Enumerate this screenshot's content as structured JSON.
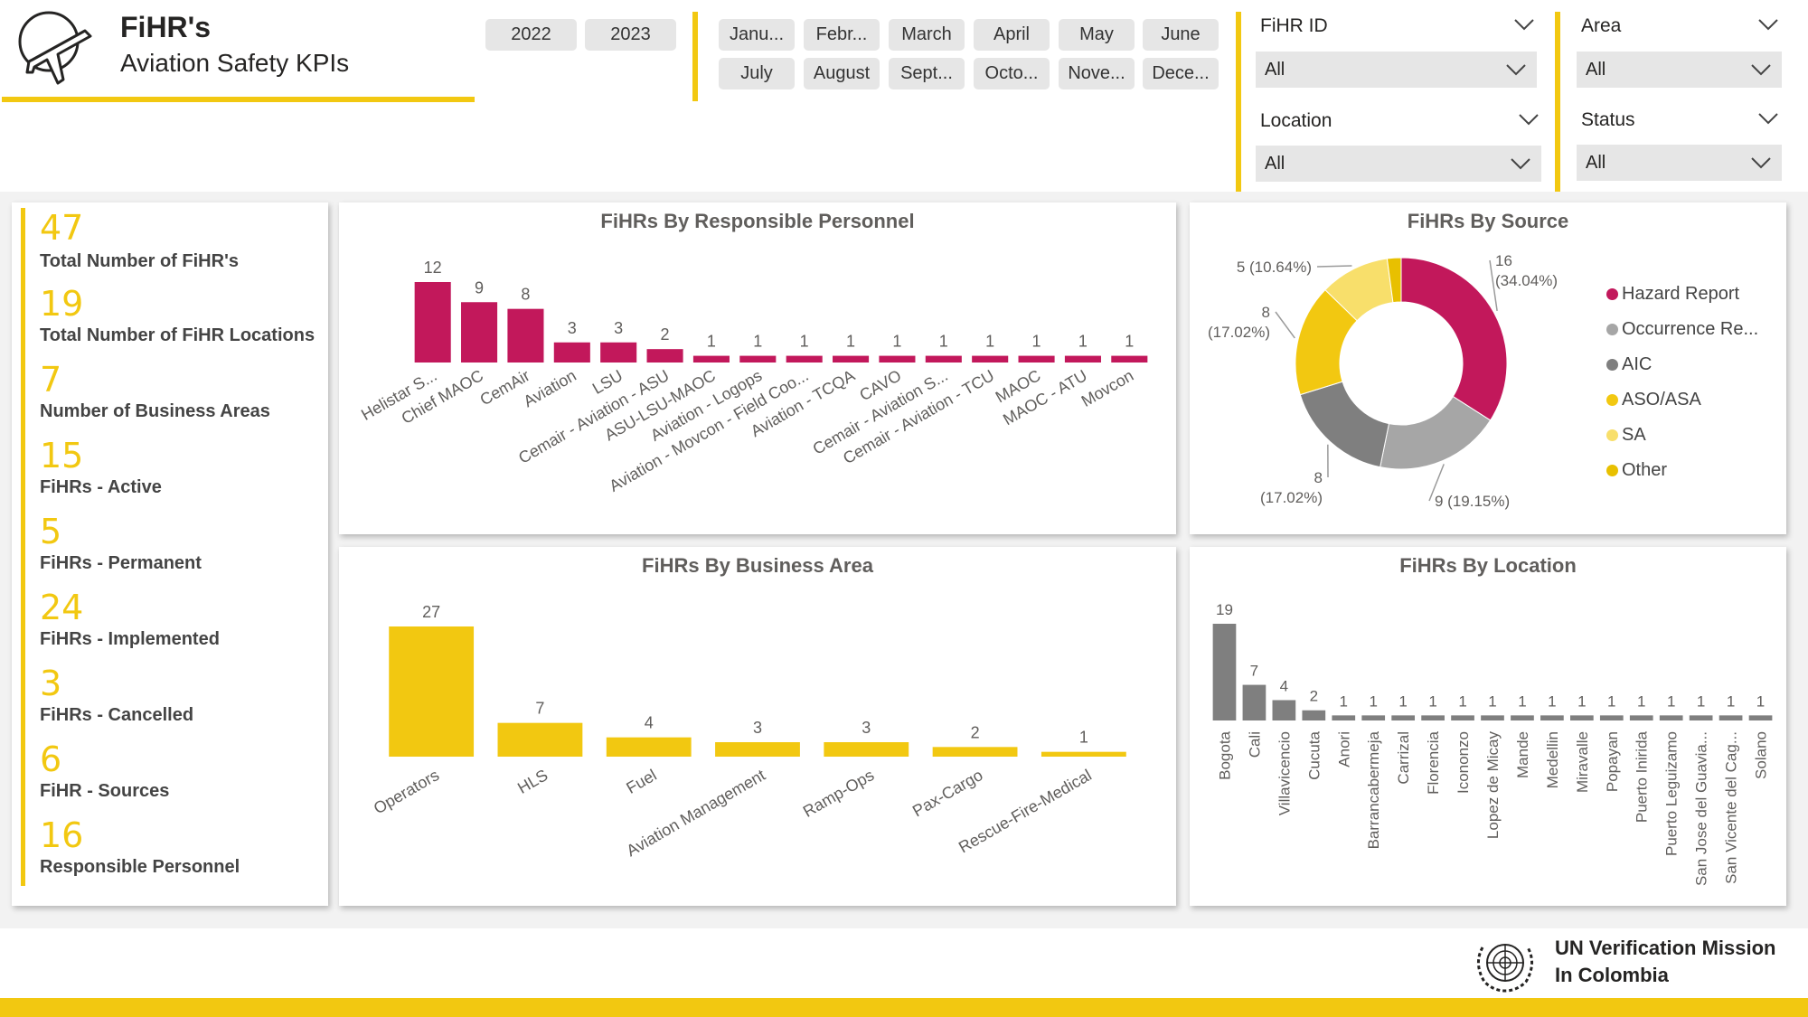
{
  "header": {
    "title": "FiHR's",
    "subtitle": "Aviation Safety KPIs",
    "years": [
      "2022",
      "2023"
    ],
    "months": [
      "Janu...",
      "Febr...",
      "March",
      "April",
      "May",
      "June",
      "July",
      "August",
      "Sept...",
      "Octo...",
      "Nove...",
      "Dece..."
    ]
  },
  "slicers": {
    "fihr_id": {
      "title": "FiHR ID",
      "value": "All"
    },
    "location": {
      "title": "Location",
      "value": "All"
    },
    "area": {
      "title": "Area",
      "value": "All"
    },
    "status": {
      "title": "Status",
      "value": "All"
    }
  },
  "kpis": [
    {
      "value": "47",
      "label": "Total Number of FiHR's"
    },
    {
      "value": "19",
      "label": "Total Number of FiHR Locations"
    },
    {
      "value": "7",
      "label": "Number of Business Areas"
    },
    {
      "value": "15",
      "label": "FiHRs - Active"
    },
    {
      "value": "5",
      "label": "FiHRs - Permanent"
    },
    {
      "value": "24",
      "label": "FiHRs - Implemented"
    },
    {
      "value": "3",
      "label": "FiHRs - Cancelled"
    },
    {
      "value": "6",
      "label": "FiHR - Sources"
    },
    {
      "value": "16",
      "label": "Responsible Personnel"
    }
  ],
  "footer": {
    "org_line1": "UN Verification Mission",
    "org_line2": "In Colombia"
  },
  "colors": {
    "accent_yellow": "#F2C811",
    "magenta": "#C2185B",
    "gray": "#7F7F7F",
    "slicer_bg": "#e6e6e6"
  },
  "icons": {
    "logo": "airplane-globe-icon",
    "dropdown": "chevron-down-icon",
    "emblem": "un-emblem-icon"
  },
  "chart_data": [
    {
      "type": "bar",
      "title": "FiHRs By Responsible Personnel",
      "color": "#C2185B",
      "categories": [
        "Helistar S...",
        "Chief MAOC",
        "CemAir",
        "Aviation",
        "LSU",
        "Cemair - Aviation - ASU",
        "ASU-LSU-MAOC",
        "Aviation - Logops",
        "Aviation - Movcon - Field Coo...",
        "Aviation - TCQA",
        "CAVO",
        "Cemair - Aviation S...",
        "Cemair - Aviation - TCU",
        "MAOC",
        "MAOC - ATU",
        "Movcon"
      ],
      "values": [
        12,
        9,
        8,
        3,
        3,
        2,
        1,
        1,
        1,
        1,
        1,
        1,
        1,
        1,
        1,
        1
      ]
    },
    {
      "type": "pie",
      "title": "FiHRs By Source",
      "categories": [
        "Hazard Report",
        "Occurrence Re...",
        "AIC",
        "ASO/ASA",
        "SA",
        "Other"
      ],
      "values": [
        16,
        9,
        8,
        8,
        5,
        1
      ],
      "colors": [
        "#C2185B",
        "#A6A6A6",
        "#7F7F7F",
        "#F2C811",
        "#F8DF6B",
        "#E8C000"
      ],
      "data_labels": [
        "16\n(34.04%)",
        "9 (19.15%)",
        "8\n(17.02%)",
        "8\n(17.02%)",
        "5 (10.64%)",
        ""
      ]
    },
    {
      "type": "bar",
      "title": "FiHRs By Business Area",
      "color": "#F2C811",
      "categories": [
        "Operators",
        "HLS",
        "Fuel",
        "Aviation Management",
        "Ramp-Ops",
        "Pax-Cargo",
        "Rescue-Fire-Medical"
      ],
      "values": [
        27,
        7,
        4,
        3,
        3,
        2,
        1
      ]
    },
    {
      "type": "bar",
      "title": "FiHRs By Location",
      "color": "#7F7F7F",
      "categories": [
        "Bogota",
        "Cali",
        "Villavicencio",
        "Cucuta",
        "Anori",
        "Barrancabermeja",
        "Carrizal",
        "Florencia",
        "Icononzo",
        "Lopez de Micay",
        "Mande",
        "Medellin",
        "Miravalle",
        "Popayan",
        "Puerto Inirida",
        "Puerto Leguizamo",
        "San Jose del Guavia...",
        "San Vicente del Cag...",
        "Solano"
      ],
      "values": [
        19,
        7,
        4,
        2,
        1,
        1,
        1,
        1,
        1,
        1,
        1,
        1,
        1,
        1,
        1,
        1,
        1,
        1,
        1
      ]
    }
  ]
}
